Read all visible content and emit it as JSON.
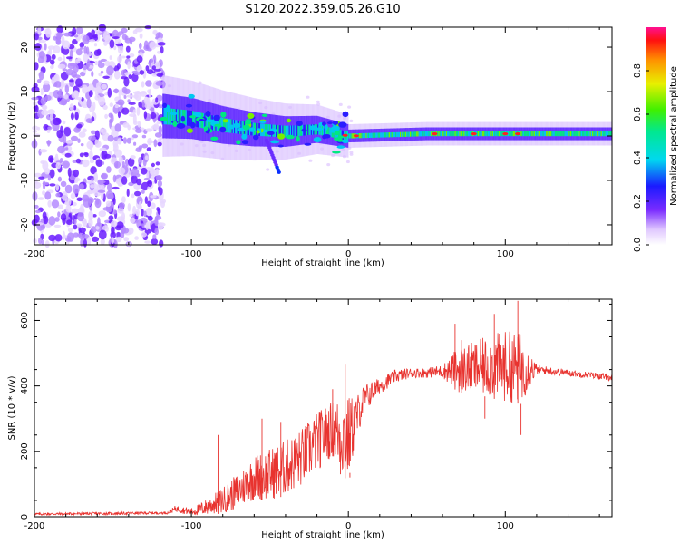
{
  "title": "S120.2022.359.05.26.G10",
  "chart_data": [
    {
      "type": "heatmap",
      "xlabel": "Height of straight line (km)",
      "ylabel": "Frequency (Hz)",
      "xlim": [
        -200,
        168
      ],
      "ylim": [
        -24.5,
        24.5
      ],
      "xticks": [
        -200,
        -100,
        0,
        100
      ],
      "yticks": [
        -20,
        -10,
        0,
        10,
        20
      ],
      "colorbar": {
        "label": "Normalized spectral amplitude",
        "range": [
          0,
          1
        ],
        "ticks": [
          0.0,
          0.2,
          0.4,
          0.6,
          0.8
        ]
      },
      "features": {
        "noise_region_x": [
          -200,
          -118
        ],
        "signal_onset_x": -118,
        "centerline": [
          [
            -118,
            4.5
          ],
          [
            -100,
            4.0
          ],
          [
            -80,
            2.5
          ],
          [
            -60,
            1.5
          ],
          [
            -40,
            1.0
          ],
          [
            -20,
            1.5
          ],
          [
            0,
            0.0
          ],
          [
            50,
            0.5
          ],
          [
            100,
            0.5
          ],
          [
            168,
            0.5
          ]
        ],
        "strong_peaks_x": [
          -2,
          5,
          55,
          80,
          100,
          108
        ]
      }
    },
    {
      "type": "line",
      "xlabel": "Height of straight line (km)",
      "ylabel": "SNR (10 * v/v)",
      "xlim": [
        -200,
        168
      ],
      "ylim": [
        0,
        665
      ],
      "xticks": [
        -200,
        -100,
        0,
        100
      ],
      "yticks": [
        0,
        200,
        400,
        600
      ],
      "series": [
        {
          "color": "#e8332f",
          "envelope": {
            "x": [
              -200,
              -150,
              -115,
              -110,
              -100,
              -90,
              -80,
              -70,
              -60,
              -50,
              -40,
              -30,
              -20,
              -10,
              -5,
              0,
              5,
              10,
              20,
              30,
              40,
              50,
              60,
              70,
              80,
              90,
              100,
              110,
              120,
              130,
              140,
              150,
              160,
              168
            ],
            "base": [
              8,
              10,
              12,
              25,
              15,
              30,
              50,
              80,
              120,
              130,
              150,
              180,
              230,
              270,
              250,
              240,
              300,
              360,
              400,
              430,
              440,
              440,
              445,
              450,
              455,
              460,
              460,
              455,
              450,
              445,
              440,
              435,
              430,
              425
            ],
            "amp": [
              4,
              4,
              4,
              10,
              12,
              25,
              40,
              55,
              70,
              80,
              85,
              90,
              90,
              85,
              120,
              130,
              70,
              45,
              25,
              20,
              15,
              15,
              20,
              70,
              80,
              95,
              110,
              110,
              15,
              12,
              10,
              10,
              10,
              10
            ]
          },
          "peaks": [
            [
              -83,
              250
            ],
            [
              -55,
              300
            ],
            [
              -43,
              290
            ],
            [
              -18,
              320
            ],
            [
              -10,
              390
            ],
            [
              -2,
              465
            ],
            [
              -5,
              200
            ],
            [
              1,
              120
            ],
            [
              68,
              590
            ],
            [
              72,
              540
            ],
            [
              93,
              620
            ],
            [
              108,
              660
            ],
            [
              87,
              300
            ],
            [
              110,
              250
            ]
          ]
        }
      ]
    }
  ]
}
